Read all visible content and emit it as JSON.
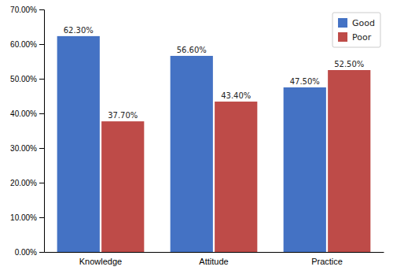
{
  "chart_data": {
    "type": "bar",
    "categories": [
      "Knowledge",
      "Attitude",
      "Practice"
    ],
    "series": [
      {
        "name": "Good",
        "color": "#4472C4",
        "values": [
          62.3,
          56.6,
          47.5
        ],
        "value_labels": [
          "62.30%",
          "56.60%",
          "47.50%"
        ]
      },
      {
        "name": "Poor",
        "color": "#BE4B48",
        "values": [
          37.7,
          43.4,
          52.5
        ],
        "value_labels": [
          "37.70%",
          "43.40%",
          "52.50%"
        ]
      }
    ],
    "ylim": [
      0,
      70
    ],
    "yticks": [
      {
        "value": 0,
        "label": "0.00%"
      },
      {
        "value": 10,
        "label": "10.00%"
      },
      {
        "value": 20,
        "label": "20.00%"
      },
      {
        "value": 30,
        "label": "30.00%"
      },
      {
        "value": 40,
        "label": "40.00%"
      },
      {
        "value": 50,
        "label": "50.00%"
      },
      {
        "value": 60,
        "label": "60.00%"
      },
      {
        "value": 70,
        "label": "70.00%"
      }
    ],
    "grid": false,
    "legend": "upper right",
    "data_labels": true
  }
}
